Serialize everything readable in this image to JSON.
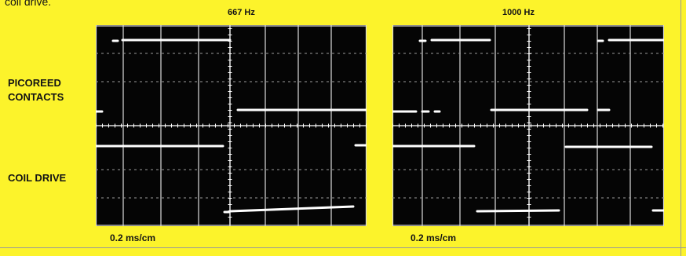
{
  "caption_fragment": "coil drive.",
  "labels": {
    "contacts_line1": "PICOREED",
    "contacts_line2": "CONTACTS",
    "coil": "COIL DRIVE"
  },
  "scopes": [
    {
      "frequency": "667 Hz",
      "timebase": "0.2 ms/cm"
    },
    {
      "frequency": "1000 Hz",
      "timebase": "0.2 ms/cm"
    }
  ],
  "colors": {
    "background": "#fcf32b",
    "screen": "#050505",
    "trace": "#ffffff",
    "text": "#141414"
  }
}
